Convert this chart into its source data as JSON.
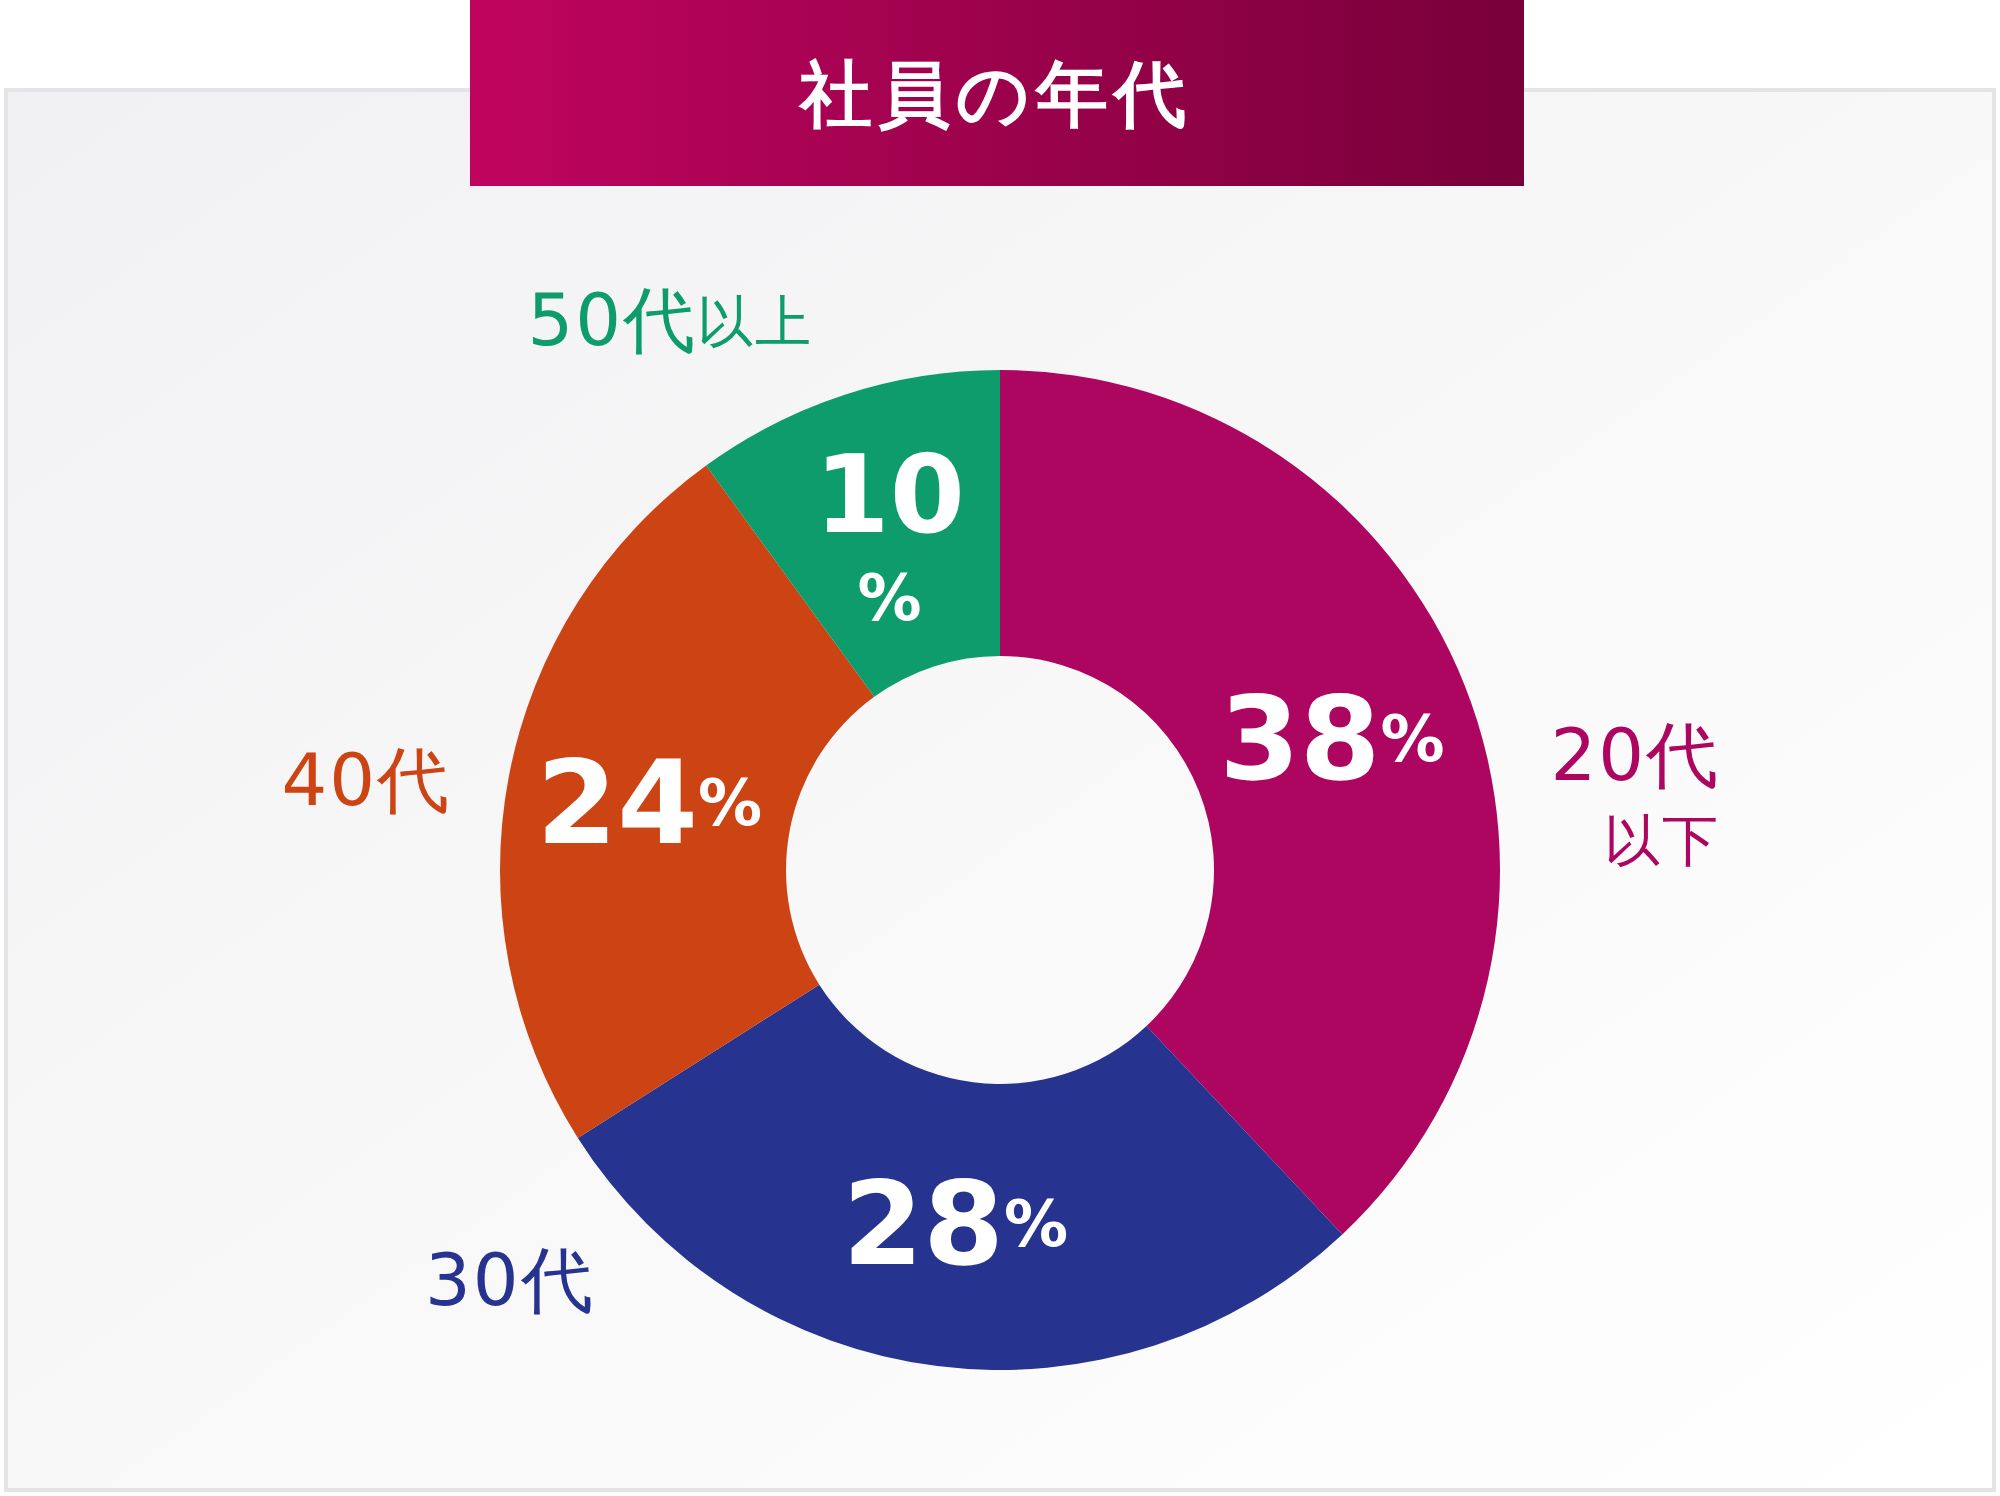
{
  "chart_data": {
    "type": "donut",
    "title": "社員の年代",
    "categories": [
      "20代以下",
      "30代",
      "40代",
      "50代以上"
    ],
    "values": [
      38,
      28,
      24,
      10
    ],
    "colors": [
      "#ac0660",
      "#26338f",
      "#cc4414",
      "#0e9c6c"
    ],
    "value_labels": [
      "38%",
      "28%",
      "24%",
      "10%"
    ]
  }
}
